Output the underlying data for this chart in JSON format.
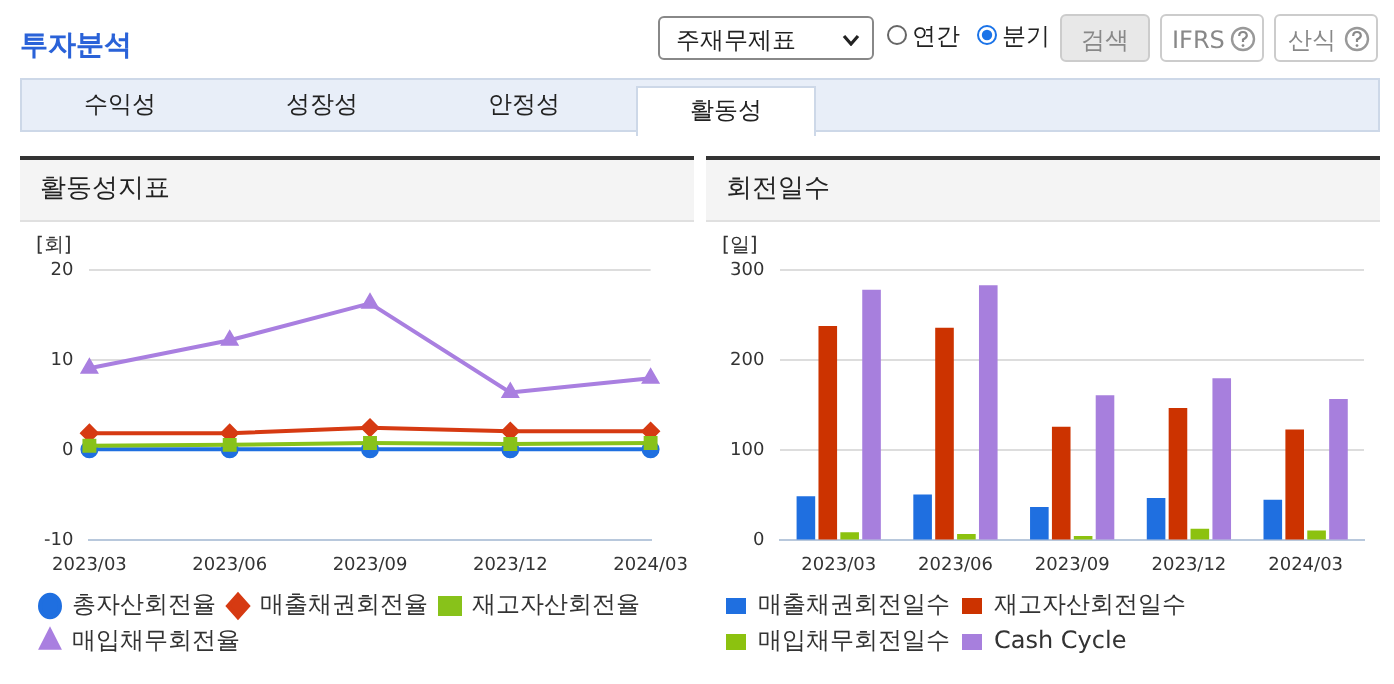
{
  "chart_data": [
    {
      "type": "other",
      "title": "투자분석",
      "annotations": [
        "주재무제표",
        "연간",
        "분기",
        "검색",
        "IFRS",
        "산식",
        "수익성",
        "성장성",
        "안정성",
        "활동성"
      ]
    },
    {
      "type": "line",
      "title": "활동성지표",
      "ylabel": "[회]",
      "categories": [
        "2023/03",
        "2023/06",
        "2023/09",
        "2023/12",
        "2024/03"
      ],
      "ylim": [
        -10,
        20
      ],
      "yticks": [
        -10,
        0,
        10,
        20
      ],
      "grid": "y",
      "legend": "bottom",
      "series": [
        {
          "name": "총자산회전율",
          "color": "#1f6fe0",
          "marker": "circle",
          "values": [
            0.1,
            0.1,
            0.1,
            0.1,
            0.1
          ]
        },
        {
          "name": "매출채권회전율",
          "color": "#d63a12",
          "marker": "diamond",
          "values": [
            1.9,
            1.9,
            2.5,
            2.1,
            2.1
          ]
        },
        {
          "name": "재고자산회전율",
          "color": "#88c21a",
          "marker": "square",
          "values": [
            0.5,
            0.6,
            0.8,
            0.7,
            0.8
          ]
        },
        {
          "name": "매입채무회전율",
          "color": "#a97fe0",
          "marker": "triangle",
          "values": [
            9.1,
            12.2,
            16.3,
            6.4,
            8.0
          ]
        }
      ]
    },
    {
      "type": "bar",
      "title": "회전일수",
      "ylabel": "[일]",
      "categories": [
        "2023/03",
        "2023/06",
        "2023/09",
        "2023/12",
        "2024/03"
      ],
      "ylim": [
        0,
        300
      ],
      "yticks": [
        0,
        100,
        200,
        300
      ],
      "grid": "y",
      "legend": "bottom",
      "series": [
        {
          "name": "매출채권회전일수",
          "color": "#1f6fe0",
          "values": [
            49,
            51,
            37,
            47,
            45
          ]
        },
        {
          "name": "재고자산회전일수",
          "color": "#cc3300",
          "values": [
            238,
            236,
            126,
            147,
            123
          ]
        },
        {
          "name": "매입채무회전일수",
          "color": "#8cc20f",
          "values": [
            9,
            7,
            5,
            13,
            11
          ]
        },
        {
          "name": "Cash Cycle",
          "color": "#a77fdd",
          "values": [
            278,
            283,
            161,
            180,
            157
          ]
        }
      ]
    }
  ]
}
